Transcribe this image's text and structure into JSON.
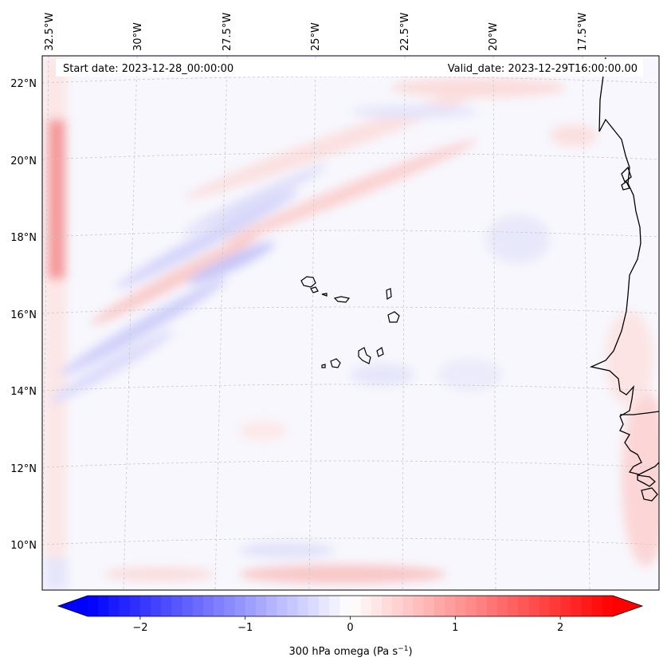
{
  "map": {
    "start_date": "Start date: 2023-12-28_00:00:00",
    "valid_date": "Valid_date: 2023-12-29T16:00:00.00",
    "lon_labels": [
      "32.5°W",
      "30°W",
      "27.5°W",
      "25°W",
      "22.5°W",
      "20°W",
      "17.5°W"
    ],
    "lat_labels": [
      "22°N",
      "20°N",
      "18°N",
      "16°N",
      "14°N",
      "12°N",
      "10°N"
    ],
    "field": "300 hPa omega"
  },
  "colorbar": {
    "tick_labels": [
      "−2",
      "−1",
      "0",
      "1",
      "2"
    ],
    "tick_values": [
      -2,
      -1,
      0,
      1,
      2
    ],
    "min": -2.5,
    "max": 2.5,
    "label_main": "300 hPa omega (Pa s",
    "label_sup": "−1",
    "label_end": ")",
    "color_low": "#0000ff",
    "color_mid": "#ffffff",
    "color_high": "#ff0000"
  }
}
